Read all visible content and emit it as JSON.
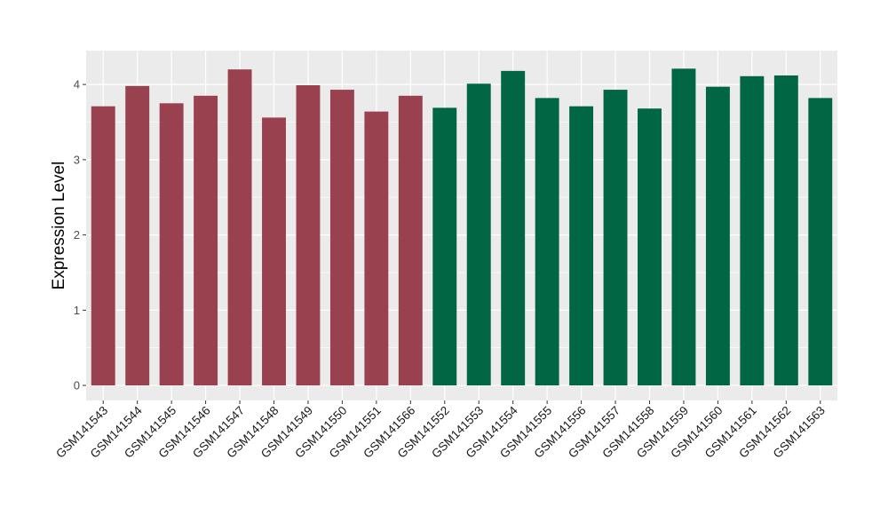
{
  "chart_data": {
    "type": "bar",
    "title": "",
    "xlabel": "",
    "ylabel": "Expression Level",
    "ylim": [
      -0.2,
      4.45
    ],
    "yticks": [
      0,
      1,
      2,
      3,
      4
    ],
    "grid": true,
    "legend": "none",
    "categories": [
      "GSM141543",
      "GSM141544",
      "GSM141545",
      "GSM141546",
      "GSM141547",
      "GSM141548",
      "GSM141549",
      "GSM141550",
      "GSM141551",
      "GSM141566",
      "GSM141552",
      "GSM141553",
      "GSM141554",
      "GSM141555",
      "GSM141556",
      "GSM141557",
      "GSM141558",
      "GSM141559",
      "GSM141560",
      "GSM141561",
      "GSM141562",
      "GSM141563"
    ],
    "values": [
      3.71,
      3.98,
      3.75,
      3.85,
      4.2,
      3.56,
      3.99,
      3.93,
      3.64,
      3.85,
      3.69,
      4.01,
      4.18,
      3.82,
      3.71,
      3.93,
      3.68,
      4.21,
      3.97,
      4.11,
      4.12,
      3.82
    ],
    "groups": [
      0,
      0,
      0,
      0,
      0,
      0,
      0,
      0,
      0,
      0,
      1,
      1,
      1,
      1,
      1,
      1,
      1,
      1,
      1,
      1,
      1,
      1
    ],
    "group_colors": [
      "#9a4150",
      "#006643"
    ],
    "panel_background": "#ebebeb",
    "grid_color": "#ffffff"
  }
}
